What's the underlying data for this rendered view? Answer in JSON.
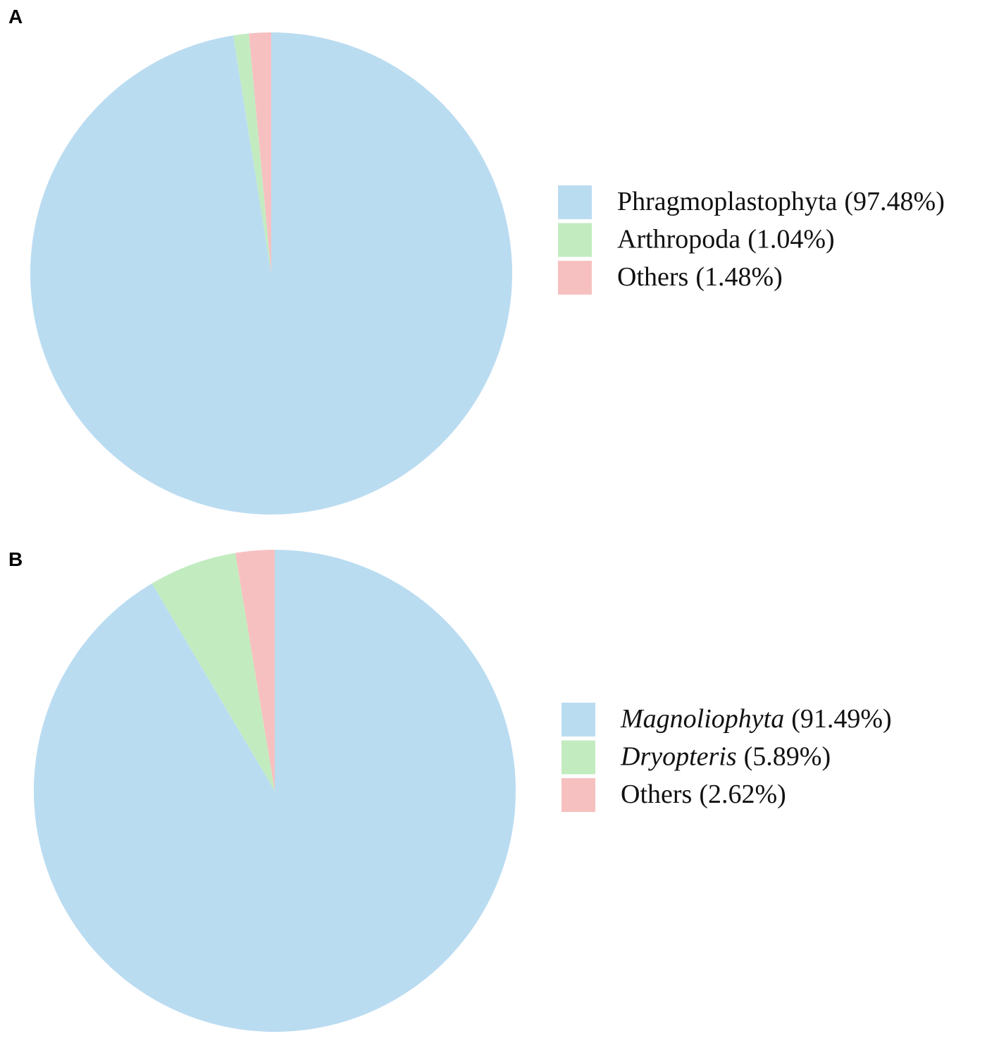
{
  "chart_data": [
    {
      "type": "pie",
      "panel": "A",
      "categories": [
        "Phragmoplastophyta",
        "Arthropoda",
        "Others"
      ],
      "values": [
        97.48,
        1.04,
        1.48
      ],
      "value_labels": [
        "(97.48%)",
        "(1.04%)",
        "(1.48%)"
      ],
      "colors": [
        "#badcf1",
        "#c2ecc0",
        "#f7c0c0"
      ],
      "italic_names": [
        false,
        false,
        false
      ]
    },
    {
      "type": "pie",
      "panel": "B",
      "categories": [
        "Magnoliophyta",
        "Dryopteris",
        "Others"
      ],
      "values": [
        91.49,
        5.89,
        2.62
      ],
      "value_labels": [
        "(91.49%)",
        "(5.89%)",
        "(2.62%)"
      ],
      "colors": [
        "#badcf1",
        "#c2ecc0",
        "#f7c0c0"
      ],
      "italic_names": [
        true,
        true,
        false
      ]
    }
  ]
}
